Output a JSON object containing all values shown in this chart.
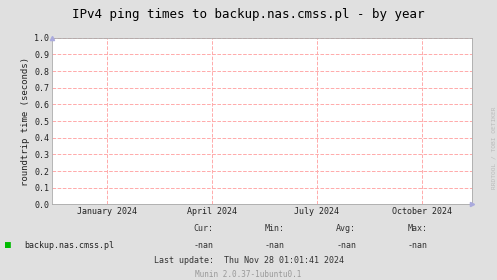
{
  "title": "IPv4 ping times to backup.nas.cmss.pl - by year",
  "ylabel": "roundtrip time (seconds)",
  "ylim": [
    0.0,
    1.0
  ],
  "yticks": [
    0.0,
    0.1,
    0.2,
    0.3,
    0.4,
    0.5,
    0.6,
    0.7,
    0.8,
    0.9,
    1.0
  ],
  "xtick_labels": [
    "January 2024",
    "April 2024",
    "July 2024",
    "October 2024"
  ],
  "xtick_positions": [
    0.13,
    0.38,
    0.63,
    0.88
  ],
  "bg_color": "#e0e0e0",
  "plot_bg_color": "#ffffff",
  "grid_color": "#ffaaaa",
  "grid_style": "--",
  "title_color": "#000000",
  "axis_color": "#aaaaaa",
  "legend_label": "backup.nas.cmss.pl",
  "legend_color": "#00bb00",
  "cur_label": "Cur:",
  "cur_val": "-nan",
  "min_label": "Min:",
  "min_val": "-nan",
  "avg_label": "Avg:",
  "avg_val": "-nan",
  "max_label": "Max:",
  "max_val": "-nan",
  "last_update": "Last update:  Thu Nov 28 01:01:41 2024",
  "munin_version": "Munin 2.0.37-1ubuntu0.1",
  "watermark": "RRDTOOL / TOBI OETIKER",
  "title_fontsize": 9,
  "label_fontsize": 6.5,
  "tick_fontsize": 6,
  "footer_fontsize": 6,
  "munin_fontsize": 5.5,
  "watermark_fontsize": 4.5
}
